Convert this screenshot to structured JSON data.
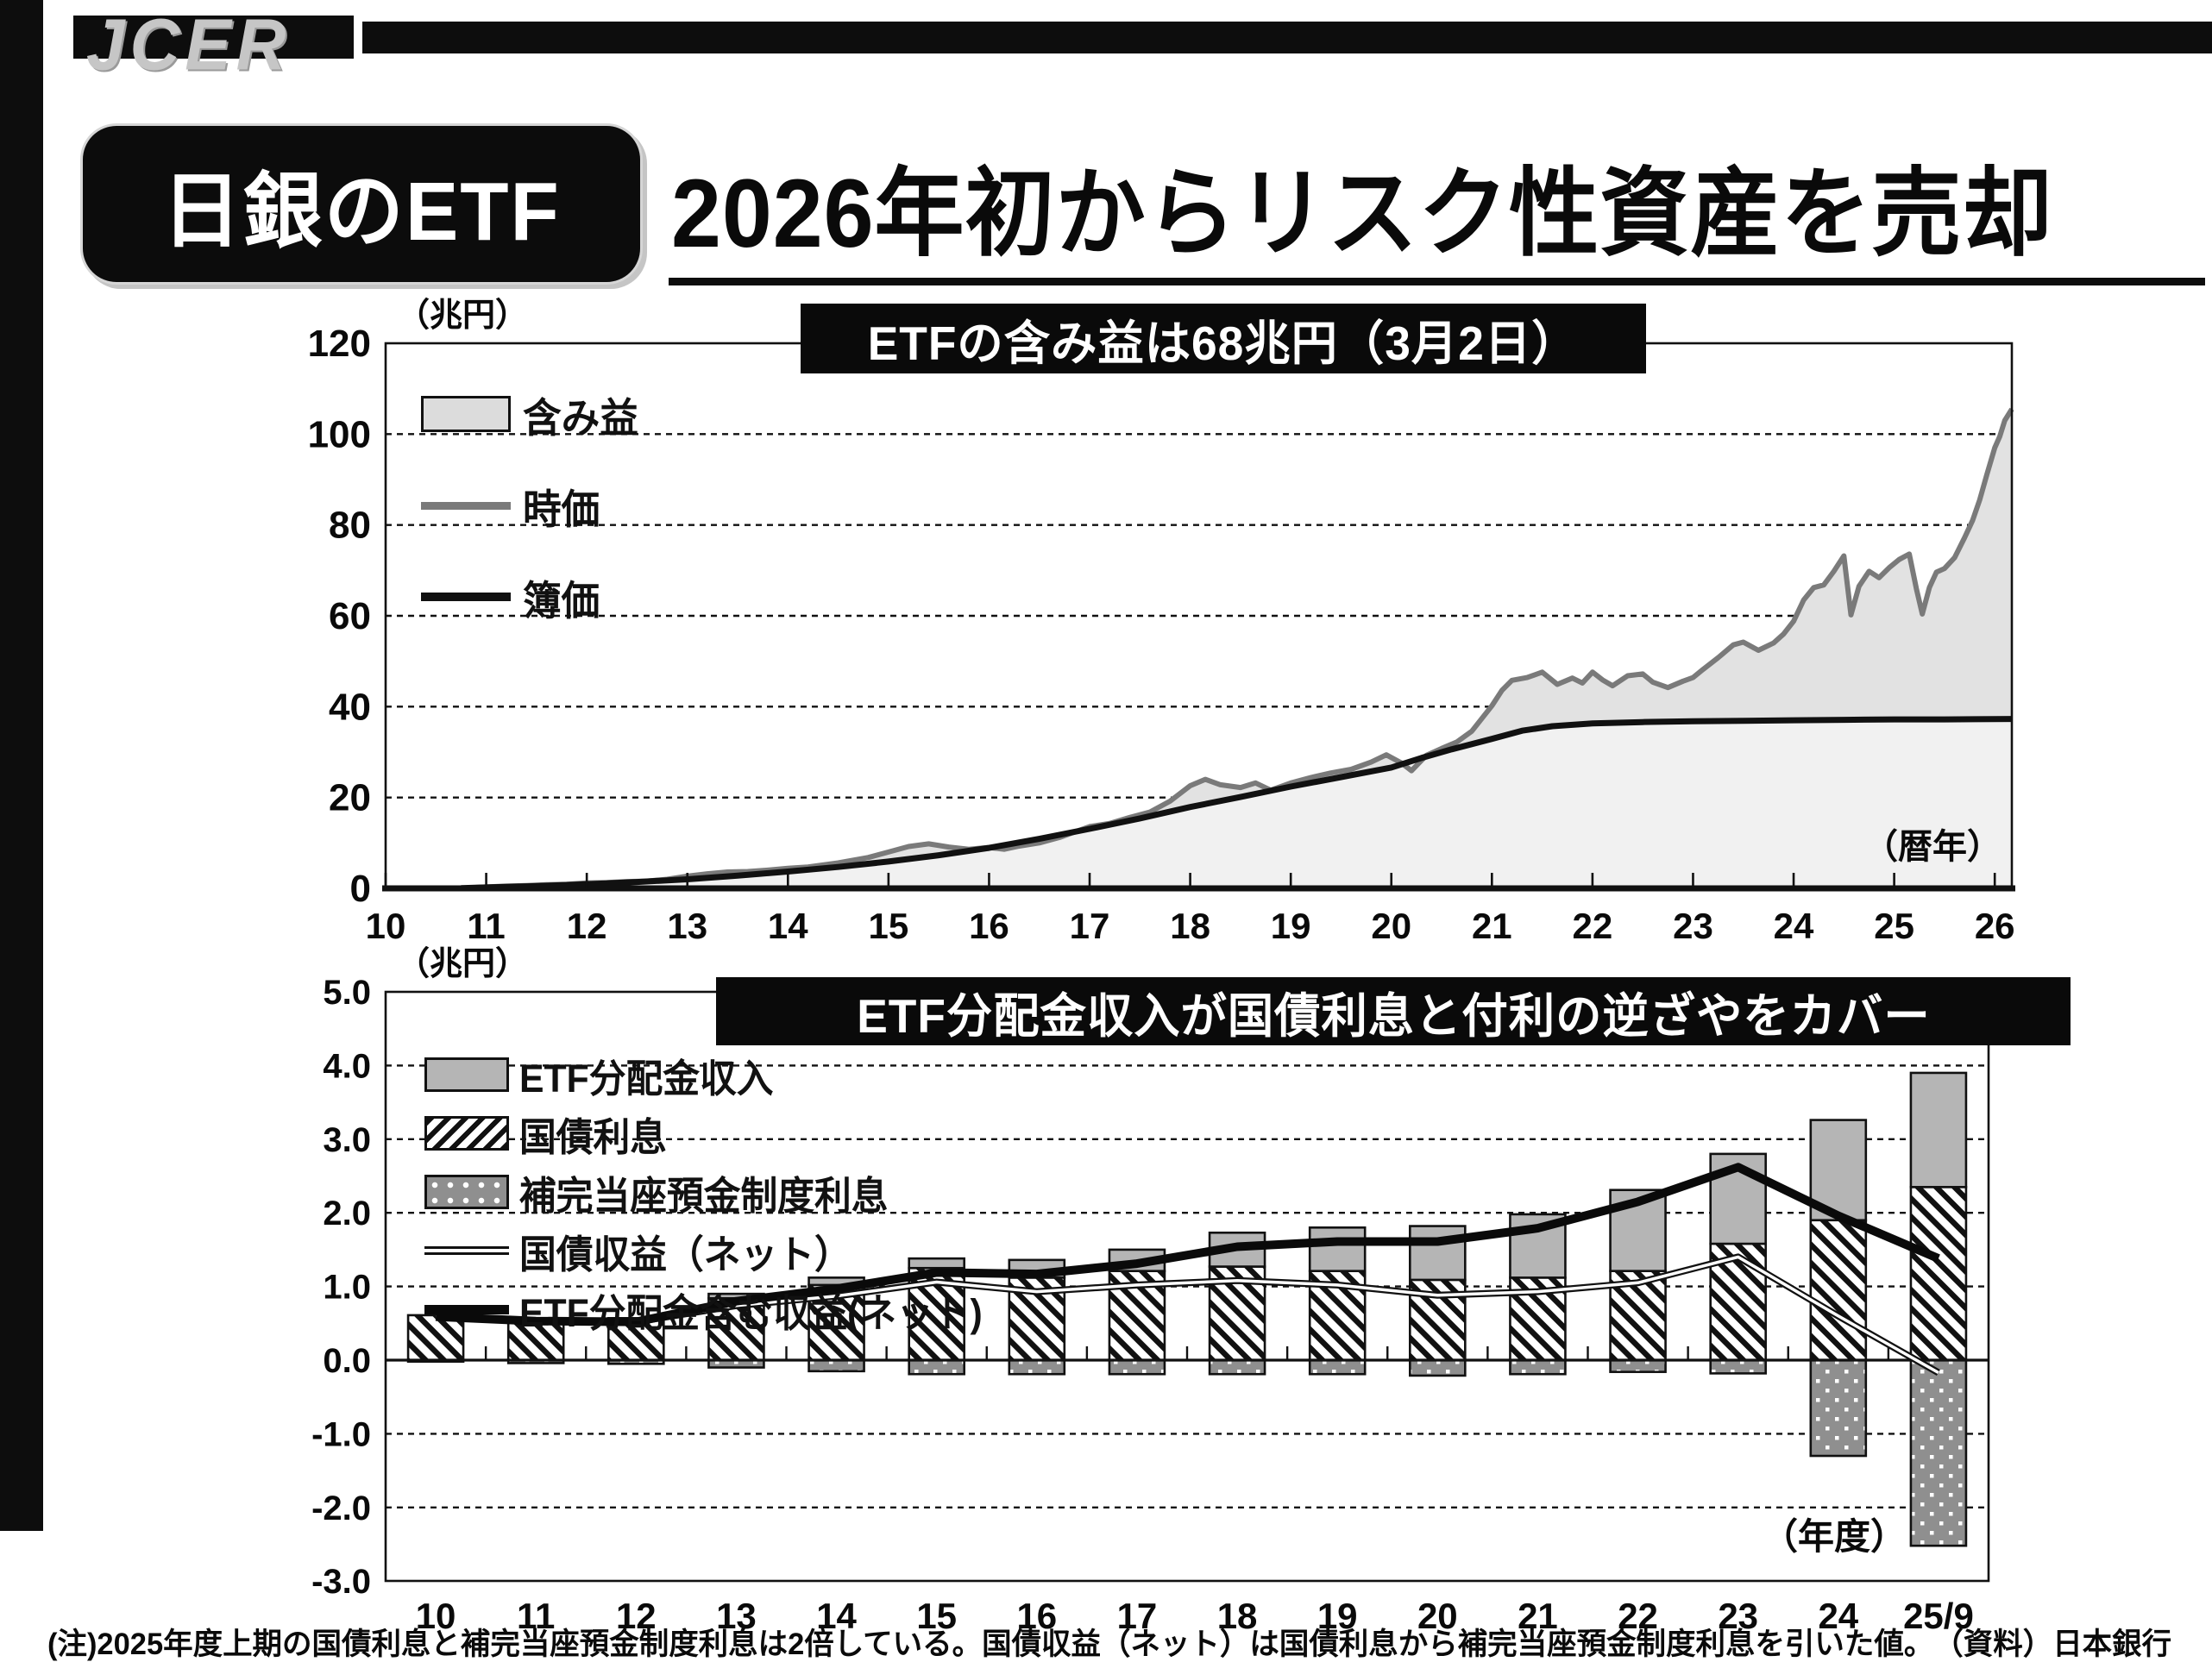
{
  "header": {
    "logo_text": "JCER",
    "tag_label": "日銀のETF",
    "title": "2026年初からリスク性資産を売却"
  },
  "footnote": "(注)2025年度上期の国債利息と補完当座預金制度利息は2倍している。国債収益（ネット）は国債利息から補完当座預金制度利息を引いた値。　（資料）日本銀行",
  "colors": {
    "black": "#111111",
    "market_line_gray": "#7a7a7a",
    "unrealized_band_fill": "#e2e2e2",
    "book_area_fill": "#f1f1f1",
    "legend_unrealized_swatch": "#dcdcdc",
    "bar_dividend_gray": "#b5b5b5",
    "bar_supplement_gray": "#8f8f8f",
    "caption_bg": "#0a0a0a",
    "caption_fg": "#ffffff"
  },
  "chart_data": [
    {
      "type": "area",
      "caption": "ETFの含み益は68兆円（3月2日）",
      "unit_label": "（兆円）",
      "x_axis_note": "（暦年）",
      "legend": [
        "含み益",
        "時価",
        "簿価"
      ],
      "xlim": [
        10,
        26.17
      ],
      "ylim": [
        0,
        120
      ],
      "y_ticks": {
        "values": [
          0,
          20,
          40,
          60,
          80,
          100,
          120
        ],
        "labels": [
          "0",
          "20",
          "40",
          "60",
          "80",
          "100",
          "120"
        ]
      },
      "x_ticks": {
        "values": [
          10,
          11,
          12,
          13,
          14,
          15,
          16,
          17,
          18,
          19,
          20,
          21,
          22,
          23,
          24,
          25,
          26
        ],
        "labels": [
          "10",
          "11",
          "12",
          "13",
          "14",
          "15",
          "16",
          "17",
          "18",
          "19",
          "20",
          "21",
          "22",
          "23",
          "24",
          "25",
          "26"
        ]
      },
      "grid": "dashed horizontal at 20,40,60,80,100",
      "series": [
        {
          "name": "時価",
          "points": [
            [
              10.75,
              0.05
            ],
            [
              11,
              0.3
            ],
            [
              11.2,
              0.5
            ],
            [
              11.4,
              0.6
            ],
            [
              11.6,
              0.8
            ],
            [
              11.8,
              0.9
            ],
            [
              12,
              1.2
            ],
            [
              12.2,
              1.3
            ],
            [
              12.4,
              1.5
            ],
            [
              12.6,
              1.6
            ],
            [
              12.8,
              2
            ],
            [
              13,
              2.7
            ],
            [
              13.2,
              3.2
            ],
            [
              13.4,
              3.6
            ],
            [
              13.6,
              3.7
            ],
            [
              13.8,
              4
            ],
            [
              14,
              4.4
            ],
            [
              14.2,
              4.7
            ],
            [
              14.5,
              5.6
            ],
            [
              14.8,
              6.8
            ],
            [
              15,
              8
            ],
            [
              15.2,
              9.2
            ],
            [
              15.4,
              9.8
            ],
            [
              15.6,
              9.1
            ],
            [
              15.8,
              8.6
            ],
            [
              16,
              9
            ],
            [
              16.15,
              8.6
            ],
            [
              16.3,
              9.3
            ],
            [
              16.5,
              10
            ],
            [
              16.7,
              11.2
            ],
            [
              16.85,
              12.4
            ],
            [
              17,
              13.6
            ],
            [
              17.2,
              14.3
            ],
            [
              17.4,
              15.6
            ],
            [
              17.6,
              16.8
            ],
            [
              17.8,
              19.2
            ],
            [
              18,
              22.6
            ],
            [
              18.15,
              24
            ],
            [
              18.3,
              22.8
            ],
            [
              18.5,
              22.2
            ],
            [
              18.65,
              23.2
            ],
            [
              18.8,
              21.6
            ],
            [
              19,
              23.2
            ],
            [
              19.2,
              24.4
            ],
            [
              19.4,
              25.4
            ],
            [
              19.6,
              26.2
            ],
            [
              19.8,
              27.8
            ],
            [
              19.95,
              29.4
            ],
            [
              20.1,
              27.6
            ],
            [
              20.2,
              25.9
            ],
            [
              20.35,
              29.3
            ],
            [
              20.5,
              30.8
            ],
            [
              20.65,
              32.2
            ],
            [
              20.8,
              34.6
            ],
            [
              21,
              40.2
            ],
            [
              21.1,
              43.6
            ],
            [
              21.2,
              45.8
            ],
            [
              21.35,
              46.4
            ],
            [
              21.5,
              47.6
            ],
            [
              21.65,
              44.9
            ],
            [
              21.8,
              46.3
            ],
            [
              21.9,
              45.2
            ],
            [
              22,
              47.6
            ],
            [
              22.1,
              45.9
            ],
            [
              22.2,
              44.6
            ],
            [
              22.35,
              46.8
            ],
            [
              22.5,
              47.2
            ],
            [
              22.6,
              45.4
            ],
            [
              22.75,
              44.2
            ],
            [
              22.9,
              45.6
            ],
            [
              23,
              46.4
            ],
            [
              23.1,
              48.2
            ],
            [
              23.25,
              50.8
            ],
            [
              23.4,
              53.6
            ],
            [
              23.5,
              54.2
            ],
            [
              23.65,
              52.4
            ],
            [
              23.8,
              54
            ],
            [
              23.9,
              56
            ],
            [
              24,
              58.8
            ],
            [
              24.1,
              63.5
            ],
            [
              24.2,
              66.2
            ],
            [
              24.3,
              66.8
            ],
            [
              24.4,
              69.8
            ],
            [
              24.5,
              73.2
            ],
            [
              24.57,
              60.2
            ],
            [
              24.65,
              66.5
            ],
            [
              24.75,
              69.8
            ],
            [
              24.85,
              68.4
            ],
            [
              24.95,
              70.6
            ],
            [
              25.05,
              72.4
            ],
            [
              25.15,
              73.6
            ],
            [
              25.22,
              66
            ],
            [
              25.28,
              60.4
            ],
            [
              25.35,
              66.2
            ],
            [
              25.42,
              69.6
            ],
            [
              25.5,
              70.4
            ],
            [
              25.6,
              72.8
            ],
            [
              25.7,
              77.2
            ],
            [
              25.78,
              81
            ],
            [
              25.85,
              85.5
            ],
            [
              25.92,
              91
            ],
            [
              26,
              97
            ],
            [
              26.05,
              99.5
            ],
            [
              26.1,
              103
            ],
            [
              26.17,
              105.5
            ]
          ]
        },
        {
          "name": "簿価",
          "points": [
            [
              10.75,
              0.05
            ],
            [
              11,
              0.2
            ],
            [
              11.5,
              0.5
            ],
            [
              12,
              0.9
            ],
            [
              12.5,
              1.4
            ],
            [
              13,
              2
            ],
            [
              13.5,
              2.8
            ],
            [
              14,
              3.7
            ],
            [
              14.5,
              4.7
            ],
            [
              15,
              5.9
            ],
            [
              15.5,
              7.3
            ],
            [
              16,
              8.9
            ],
            [
              16.5,
              10.9
            ],
            [
              17,
              13.1
            ],
            [
              17.5,
              15.4
            ],
            [
              18,
              17.9
            ],
            [
              18.5,
              20.1
            ],
            [
              19,
              22.4
            ],
            [
              19.5,
              24.5
            ],
            [
              20,
              26.6
            ],
            [
              20.3,
              28.7
            ],
            [
              20.6,
              30.6
            ],
            [
              21,
              32.9
            ],
            [
              21.3,
              34.7
            ],
            [
              21.6,
              35.7
            ],
            [
              22,
              36.3
            ],
            [
              22.5,
              36.6
            ],
            [
              23,
              36.8
            ],
            [
              23.5,
              36.9
            ],
            [
              24,
              37
            ],
            [
              24.5,
              37.1
            ],
            [
              25,
              37.2
            ],
            [
              25.5,
              37.2
            ],
            [
              26.17,
              37.3
            ]
          ]
        },
        {
          "name": "含み益",
          "note": "時価と簿価の差（面）、3月2日時点で68兆円"
        }
      ]
    },
    {
      "type": "bar",
      "caption": "ETF分配金収入が国債利息と付利の逆ざやをカバー",
      "unit_label": "（兆円）",
      "x_axis_note": "（年度）",
      "legend": [
        "ETF分配金収入",
        "国債利息",
        "補完当座預金制度利息",
        "国債収益（ネット）",
        "ETF分配金含む収益(ネット)"
      ],
      "categories": [
        "10",
        "11",
        "12",
        "13",
        "14",
        "15",
        "16",
        "17",
        "18",
        "19",
        "20",
        "21",
        "22",
        "23",
        "24",
        "25/9"
      ],
      "ylim": [
        -3.0,
        5.0
      ],
      "y_ticks": {
        "values": [
          5,
          4,
          3,
          2,
          1,
          0,
          -1,
          -2,
          -3
        ],
        "labels": [
          "5.0",
          "4.0",
          "3.0",
          "2.0",
          "1.0",
          "0.0",
          "-1.0",
          "-2.0",
          "-3.0"
        ]
      },
      "grid": "dashed horizontal at -2,-1,1,2,3,4",
      "series": [
        {
          "name": "ETF分配金収入",
          "style": "bar-stacked-gray",
          "values": [
            0,
            0,
            0,
            0.06,
            0.1,
            0.13,
            0.24,
            0.29,
            0.46,
            0.59,
            0.73,
            0.86,
            1.1,
            1.22,
            1.36,
            1.55
          ]
        },
        {
          "name": "国債利息",
          "style": "bar-hatched",
          "values": [
            0.61,
            0.57,
            0.57,
            0.84,
            1.02,
            1.25,
            1.12,
            1.21,
            1.27,
            1.21,
            1.09,
            1.12,
            1.21,
            1.58,
            1.9,
            2.35
          ]
        },
        {
          "name": "補完当座預金制度利息",
          "style": "bar-dotted-negative",
          "values": [
            -0.02,
            -0.04,
            -0.05,
            -0.1,
            -0.15,
            -0.19,
            -0.19,
            -0.19,
            -0.19,
            -0.19,
            -0.21,
            -0.19,
            -0.16,
            -0.18,
            -1.3,
            -2.52
          ]
        },
        {
          "name": "国債収益（ネット）",
          "style": "double-line",
          "values": [
            0.59,
            0.53,
            0.52,
            0.74,
            0.87,
            1.06,
            0.93,
            1.02,
            1.08,
            1.02,
            0.88,
            0.93,
            1.05,
            1.4,
            0.6,
            -0.17
          ]
        },
        {
          "name": "ETF分配金含む収益(ネット)",
          "style": "thick-line",
          "values": [
            0.59,
            0.53,
            0.52,
            0.8,
            0.97,
            1.19,
            1.17,
            1.31,
            1.54,
            1.61,
            1.61,
            1.79,
            2.15,
            2.62,
            1.96,
            1.38
          ]
        }
      ]
    }
  ]
}
